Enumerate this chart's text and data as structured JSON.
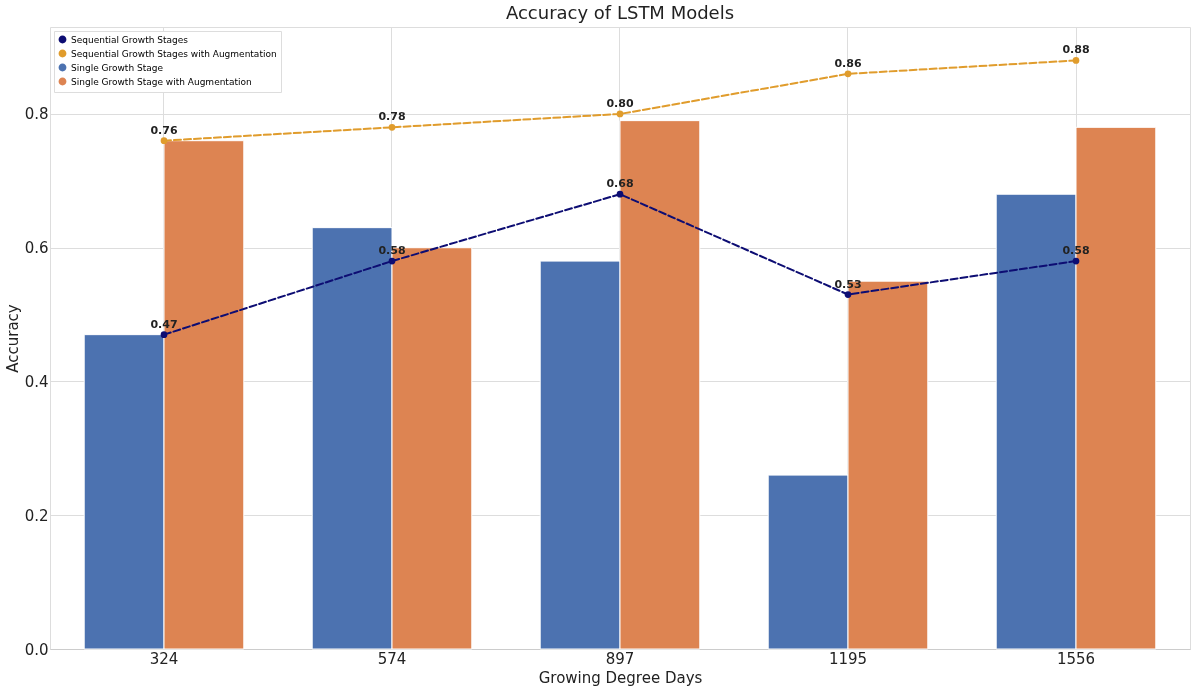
{
  "chart_data": {
    "type": "bar",
    "title": "Accuracy of LSTM Models",
    "xlabel": "Growing Degree Days",
    "ylabel": "Accuracy",
    "categories": [
      "324",
      "574",
      "897",
      "1195",
      "1556"
    ],
    "series": [
      {
        "name": "Sequential Growth Stages",
        "type": "line",
        "color": "#0d0d73",
        "values": [
          0.47,
          0.58,
          0.68,
          0.53,
          0.58
        ],
        "value_labels": [
          "0.47",
          "0.58",
          "0.68",
          "0.53",
          "0.58"
        ],
        "marker": "circle",
        "line_style": "dashed"
      },
      {
        "name": "Sequential Growth Stages with Augmentation",
        "type": "line",
        "color": "#e09c2c",
        "values": [
          0.76,
          0.78,
          0.8,
          0.86,
          0.88
        ],
        "value_labels": [
          "0.76",
          "0.78",
          "0.80",
          "0.86",
          "0.88"
        ],
        "marker": "circle",
        "line_style": "dashed"
      },
      {
        "name": "Single Growth Stage",
        "color": "#4c72b0",
        "values": [
          0.47,
          0.63,
          0.58,
          0.26,
          0.68
        ]
      },
      {
        "name": "Single Growth Stage with Augmentation",
        "color": "#dd8452",
        "values": [
          0.76,
          0.6,
          0.79,
          0.55,
          0.78
        ]
      }
    ],
    "ylim": [
      0,
      0.93
    ],
    "yticks": [
      {
        "value": 0,
        "label": "0.0"
      },
      {
        "value": 0.2,
        "label": "0.2"
      },
      {
        "value": 0.4,
        "label": "0.4"
      },
      {
        "value": 0.6,
        "label": "0.6"
      },
      {
        "value": 0.8,
        "label": "0.8"
      }
    ],
    "grid": true,
    "legend": "top left"
  }
}
